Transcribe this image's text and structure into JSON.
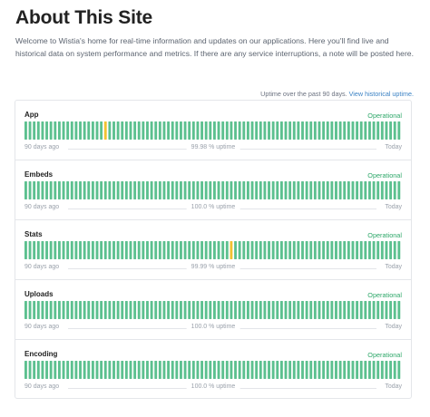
{
  "page": {
    "title": "About This Site",
    "intro": "Welcome to Wistia's home for real-time information and updates on our applications. Here you'll find live and historical data on system performance and metrics. If there are any service interruptions, a note will be posted here."
  },
  "uptime": {
    "caption": "Uptime over the past 90 days.",
    "link": "View historical uptime."
  },
  "colors": {
    "operational": "#5cc08f",
    "degraded": "#f1c232",
    "status_text": "#2fa86a"
  },
  "components": [
    {
      "name": "App",
      "status": "Operational",
      "uptime": "99.98 % uptime",
      "start": "90 days ago",
      "end": "Today",
      "bar_count": 90,
      "incident_days": [
        19
      ]
    },
    {
      "name": "Embeds",
      "status": "Operational",
      "uptime": "100.0 % uptime",
      "start": "90 days ago",
      "end": "Today",
      "bar_count": 90,
      "incident_days": []
    },
    {
      "name": "Stats",
      "status": "Operational",
      "uptime": "99.99 % uptime",
      "start": "90 days ago",
      "end": "Today",
      "bar_count": 90,
      "incident_days": [
        49
      ]
    },
    {
      "name": "Uploads",
      "status": "Operational",
      "uptime": "100.0 % uptime",
      "start": "90 days ago",
      "end": "Today",
      "bar_count": 90,
      "incident_days": []
    },
    {
      "name": "Encoding",
      "status": "Operational",
      "uptime": "100.0 % uptime",
      "start": "90 days ago",
      "end": "Today",
      "bar_count": 90,
      "incident_days": []
    }
  ]
}
